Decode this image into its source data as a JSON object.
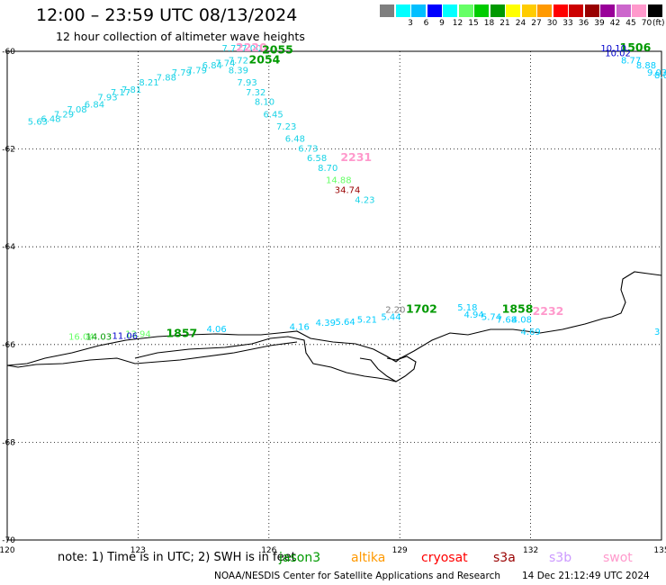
{
  "title": "12:00 – 23:59 UTC 08/13/2024",
  "subtitle": "12 hour collection of altimeter wave heights",
  "legend": {
    "unit": "(ft)",
    "bins": [
      {
        "label": "",
        "color": "#7f7f7f"
      },
      {
        "label": "3",
        "color": "#00ffff"
      },
      {
        "label": "6",
        "color": "#00bfff"
      },
      {
        "label": "9",
        "color": "#0000ff"
      },
      {
        "label": "12",
        "color": "#00ffff"
      },
      {
        "label": "15",
        "color": "#66ff66"
      },
      {
        "label": "18",
        "color": "#00cc00"
      },
      {
        "label": "21",
        "color": "#009900"
      },
      {
        "label": "24",
        "color": "#ffff00"
      },
      {
        "label": "27",
        "color": "#ffcc00"
      },
      {
        "label": "30",
        "color": "#ff9900"
      },
      {
        "label": "33",
        "color": "#ff0000"
      },
      {
        "label": "36",
        "color": "#cc0000"
      },
      {
        "label": "39",
        "color": "#990000"
      },
      {
        "label": "42",
        "color": "#990099"
      },
      {
        "label": "45",
        "color": "#cc66cc"
      },
      {
        "label": "70",
        "color": "#ff99cc"
      },
      {
        "label": "",
        "color": "#000000"
      }
    ]
  },
  "map": {
    "lon_range": [
      120,
      135
    ],
    "lat_range": [
      -70,
      -60
    ],
    "x_ticks": [
      "120",
      "123",
      "126",
      "129",
      "132",
      "135"
    ],
    "y_ticks": [
      "-60",
      "-62",
      "-64",
      "-66",
      "-68",
      "-70"
    ],
    "tracks": [
      {
        "color": "#19d3e6",
        "points": [
          {
            "lon": 120.7,
            "lat": -61.5,
            "v": "5.63"
          },
          {
            "lon": 121.0,
            "lat": -61.45,
            "v": "6.48"
          },
          {
            "lon": 121.3,
            "lat": -61.35,
            "v": "7.29"
          },
          {
            "lon": 121.6,
            "lat": -61.25,
            "v": "7.08"
          },
          {
            "lon": 122.0,
            "lat": -61.15,
            "v": "6.84"
          },
          {
            "lon": 122.3,
            "lat": -61.0,
            "v": "7.93"
          },
          {
            "lon": 122.6,
            "lat": -60.9,
            "v": "7.17"
          },
          {
            "lon": 122.85,
            "lat": -60.85,
            "v": "7.81"
          },
          {
            "lon": 123.25,
            "lat": -60.7,
            "v": "8.21"
          },
          {
            "lon": 123.65,
            "lat": -60.6,
            "v": "7.88"
          },
          {
            "lon": 124.0,
            "lat": -60.5,
            "v": "7.79"
          },
          {
            "lon": 124.35,
            "lat": -60.45,
            "v": "7.79"
          },
          {
            "lon": 124.7,
            "lat": -60.35,
            "v": "6.84"
          },
          {
            "lon": 125.0,
            "lat": -60.3,
            "v": "7.74"
          },
          {
            "lon": 125.3,
            "lat": -60.25,
            "v": "7.72"
          },
          {
            "lon": 125.15,
            "lat": -60.0,
            "v": "7.77"
          },
          {
            "lon": 125.6,
            "lat": -60.0,
            "v": "7.00"
          },
          {
            "lon": 125.3,
            "lat": -60.45,
            "v": "8.39"
          },
          {
            "lon": 125.5,
            "lat": -60.7,
            "v": "7.93"
          },
          {
            "lon": 125.7,
            "lat": -60.9,
            "v": "7.32"
          },
          {
            "lon": 125.9,
            "lat": -61.1,
            "v": "8.10"
          },
          {
            "lon": 126.1,
            "lat": -61.35,
            "v": "6.45"
          },
          {
            "lon": 126.4,
            "lat": -61.6,
            "v": "7.23"
          },
          {
            "lon": 126.6,
            "lat": -61.85,
            "v": "6.48"
          },
          {
            "lon": 126.9,
            "lat": -62.05,
            "v": "6.73"
          },
          {
            "lon": 127.1,
            "lat": -62.25,
            "v": "6.58"
          },
          {
            "lon": 127.35,
            "lat": -62.45,
            "v": "8.70"
          },
          {
            "lon": 128.2,
            "lat": -63.1,
            "v": "4.23"
          }
        ]
      },
      {
        "color": "#66ff66",
        "points": [
          {
            "lon": 127.6,
            "lat": -62.7,
            "v": "14.88"
          }
        ]
      },
      {
        "color": "#990000",
        "points": [
          {
            "lon": 127.8,
            "lat": -62.9,
            "v": "34.74"
          }
        ]
      },
      {
        "color": "#ff99cc",
        "points": [
          {
            "lon": 128.0,
            "lat": -62.25,
            "v": "2231",
            "big": true
          },
          {
            "lon": 125.6,
            "lat": -60.0,
            "v": "2220",
            "big": true
          },
          {
            "lon": 132.4,
            "lat": -65.4,
            "v": "2232",
            "big": true
          }
        ]
      },
      {
        "color": "#009900",
        "points": [
          {
            "lon": 126.2,
            "lat": -60.05,
            "v": "2055",
            "big": true
          },
          {
            "lon": 125.9,
            "lat": -60.25,
            "v": "2054",
            "big": true
          },
          {
            "lon": 124.0,
            "lat": -65.85,
            "v": "1857",
            "big": true
          },
          {
            "lon": 129.5,
            "lat": -65.35,
            "v": "1702",
            "big": true
          },
          {
            "lon": 131.7,
            "lat": -65.35,
            "v": "1858",
            "big": true
          },
          {
            "lon": 134.4,
            "lat": -60.0,
            "v": "1506",
            "big": true
          }
        ]
      },
      {
        "color": "#00ccff",
        "points": [
          {
            "lon": 124.8,
            "lat": -65.75,
            "v": "4.06"
          },
          {
            "lon": 126.7,
            "lat": -65.7,
            "v": "4.16"
          },
          {
            "lon": 127.3,
            "lat": -65.62,
            "v": "4.39"
          },
          {
            "lon": 127.75,
            "lat": -65.6,
            "v": "5.64"
          },
          {
            "lon": 128.25,
            "lat": -65.55,
            "v": "5.21"
          },
          {
            "lon": 128.8,
            "lat": -65.5,
            "v": "5.44"
          },
          {
            "lon": 130.55,
            "lat": -65.3,
            "v": "5.18"
          },
          {
            "lon": 130.7,
            "lat": -65.45,
            "v": "4.94"
          },
          {
            "lon": 131.1,
            "lat": -65.5,
            "v": "5.74"
          },
          {
            "lon": 131.45,
            "lat": -65.55,
            "v": "7.68"
          },
          {
            "lon": 131.8,
            "lat": -65.55,
            "v": "4.08"
          },
          {
            "lon": 132.0,
            "lat": -65.8,
            "v": "4.69"
          },
          {
            "lon": 134.9,
            "lat": -65.8,
            "v": "3"
          },
          {
            "lon": 134.65,
            "lat": -60.35,
            "v": "8.88"
          },
          {
            "lon": 134.9,
            "lat": -60.5,
            "v": "9.03"
          },
          {
            "lon": 135.0,
            "lat": -60.55,
            "v": "8.0"
          },
          {
            "lon": 134.3,
            "lat": -60.25,
            "v": "8.77"
          }
        ]
      },
      {
        "color": "#66ff66",
        "points": [
          {
            "lon": 123.0,
            "lat": -65.85,
            "v": "13.94"
          },
          {
            "lon": 121.7,
            "lat": -65.9,
            "v": "16.04"
          }
        ]
      },
      {
        "color": "#009900",
        "points": [
          {
            "lon": 122.1,
            "lat": -65.9,
            "v": "14.03"
          }
        ]
      },
      {
        "color": "#0000cc",
        "points": [
          {
            "lon": 122.7,
            "lat": -65.88,
            "v": "11.06"
          },
          {
            "lon": 133.9,
            "lat": -60.0,
            "v": "10.10"
          },
          {
            "lon": 134.0,
            "lat": -60.1,
            "v": "10.02"
          }
        ]
      },
      {
        "color": "#7f7f7f",
        "points": [
          {
            "lon": 128.9,
            "lat": -65.35,
            "v": "2.20"
          }
        ]
      }
    ]
  },
  "footer": {
    "note": "note:  1) Time is in UTC; 2) SWH is in feet",
    "credit": "NOAA/NESDIS Center for Satellite Applications and Research",
    "stamp": "14 Dec 21:12:49 UTC 2024",
    "satellites": [
      {
        "name": "jason3",
        "color": "#009900"
      },
      {
        "name": "altika",
        "color": "#ff9900"
      },
      {
        "name": "cryosat",
        "color": "#ff0000"
      },
      {
        "name": "s3a",
        "color": "#990000"
      },
      {
        "name": "s3b",
        "color": "#cc99ff"
      },
      {
        "name": "swot",
        "color": "#ff99cc"
      }
    ]
  }
}
